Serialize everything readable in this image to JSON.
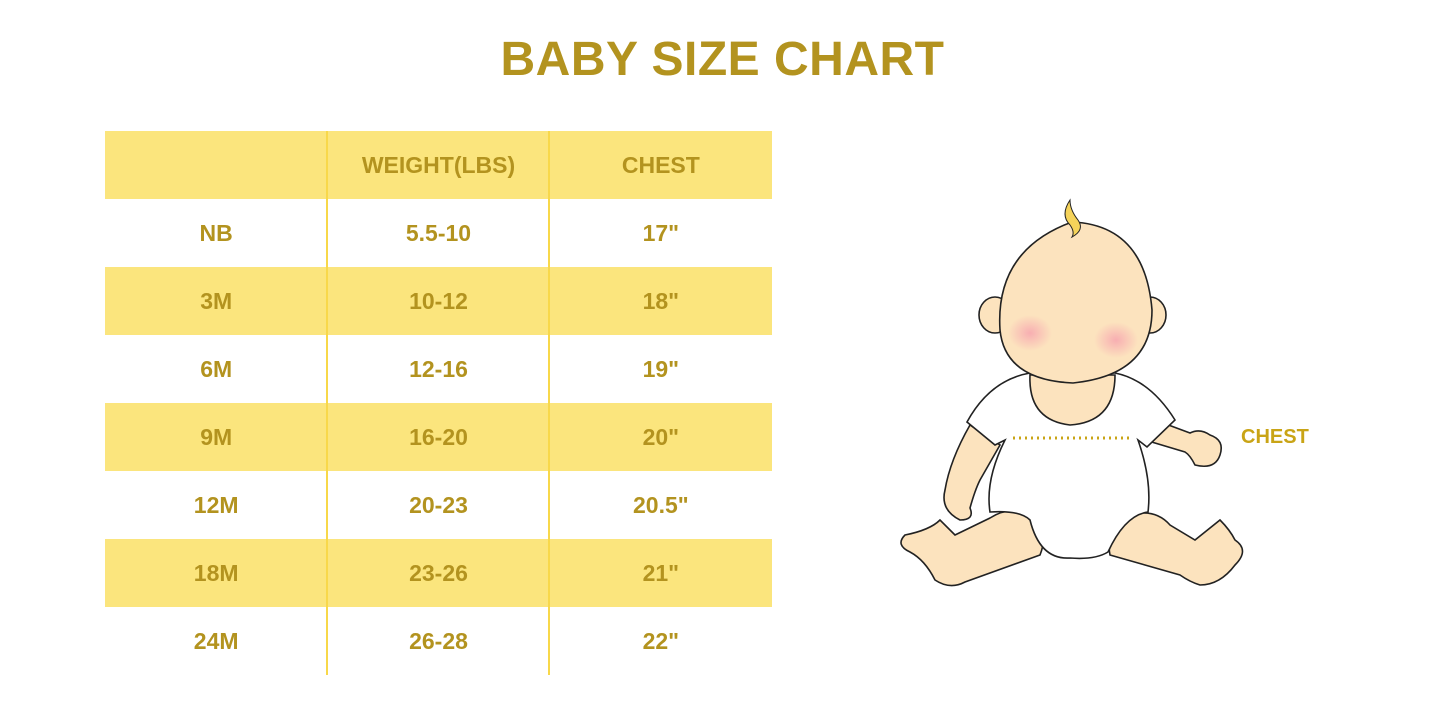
{
  "title": "BABY SIZE CHART",
  "table": {
    "headers": [
      "",
      "WEIGHT(LBS)",
      "CHEST"
    ],
    "rows": [
      [
        "NB",
        "5.5-10",
        "17\""
      ],
      [
        "3M",
        "10-12",
        "18\""
      ],
      [
        "6M",
        "12-16",
        "19\""
      ],
      [
        "9M",
        "16-20",
        "20\""
      ],
      [
        "12M",
        "20-23",
        "20.5\""
      ],
      [
        "18M",
        "23-26",
        "21\""
      ],
      [
        "24M",
        "26-28",
        "22\""
      ]
    ]
  },
  "illustration": {
    "chest_label": "CHEST"
  },
  "colors": {
    "accent_text": "#B3931F",
    "row_fill": "#FBE57D",
    "skin": "#FCE3BE"
  }
}
